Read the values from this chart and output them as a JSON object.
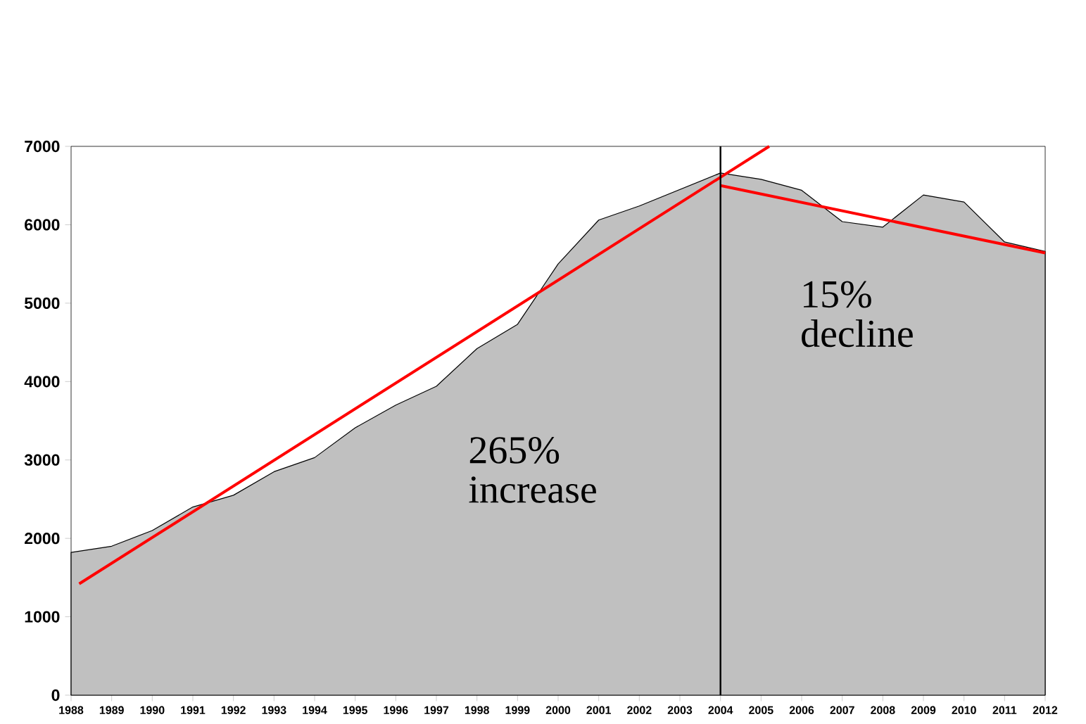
{
  "chart_data": {
    "type": "area",
    "x": [
      1988,
      1989,
      1990,
      1991,
      1992,
      1993,
      1994,
      1995,
      1996,
      1997,
      1998,
      1999,
      2000,
      2001,
      2002,
      2003,
      2004,
      2005,
      2006,
      2007,
      2008,
      2009,
      2010,
      2011,
      2012
    ],
    "series": [
      {
        "color": "#c0c0c0",
        "values": [
          1820,
          1900,
          2100,
          2400,
          2550,
          2850,
          3030,
          3410,
          3700,
          3940,
          4420,
          4730,
          5500,
          6060,
          6240,
          6450,
          6660,
          6580,
          6440,
          6040,
          5970,
          6380,
          6290,
          5780,
          5660
        ]
      },
      {
        "type": "line",
        "color": "#ff0000",
        "x": [
          1988.2,
          2005.2
        ],
        "values": [
          1420,
          7000
        ]
      },
      {
        "type": "line",
        "color": "#ff0000",
        "x": [
          2004,
          2012
        ],
        "values": [
          6500,
          5640
        ]
      }
    ],
    "xlim": [
      1988,
      2012
    ],
    "ylim": [
      0,
      7000
    ],
    "xticks": [
      1988,
      1989,
      1990,
      1991,
      1992,
      1993,
      1994,
      1995,
      1996,
      1997,
      1998,
      1999,
      2000,
      2001,
      2002,
      2003,
      2004,
      2005,
      2006,
      2007,
      2008,
      2009,
      2010,
      2011,
      2012
    ],
    "yticks": [
      0,
      1000,
      2000,
      3000,
      4000,
      5000,
      6000,
      7000
    ],
    "ref_lines": [
      {
        "axis": "x",
        "value": 2004,
        "color": "#000000"
      }
    ],
    "annotations": [
      "265% increase",
      "15% decline"
    ],
    "grid": false
  }
}
